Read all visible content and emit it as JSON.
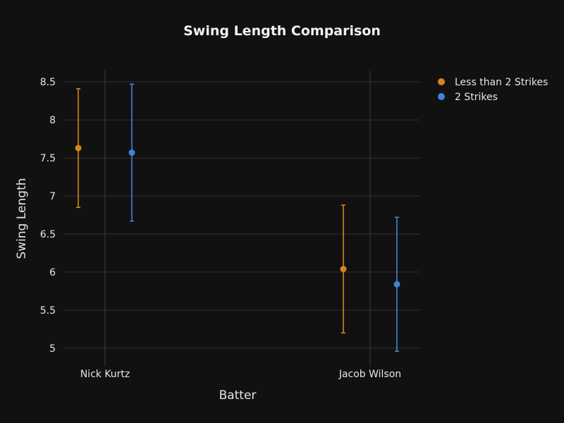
{
  "chart_data": {
    "type": "scatter",
    "title": "Swing Length Comparison",
    "xlabel": "Batter",
    "ylabel": "Swing Length",
    "categories": [
      "Nick Kurtz",
      "Jacob Wilson"
    ],
    "ylim": [
      4.85,
      8.65
    ],
    "yticks": [
      5,
      5.5,
      6,
      6.5,
      7,
      7.5,
      8,
      8.5
    ],
    "ytick_labels": [
      "5",
      "5.5",
      "6",
      "6.5",
      "7",
      "7.5",
      "8",
      "8.5"
    ],
    "grid": true,
    "legend_position": "top-right",
    "series": [
      {
        "name": "Less than 2 Strikes",
        "color": "#d4861a",
        "values": [
          7.63,
          6.04
        ],
        "error_low": [
          6.85,
          5.2
        ],
        "error_high": [
          8.41,
          6.88
        ]
      },
      {
        "name": "2 Strikes",
        "color": "#3d85d8",
        "values": [
          7.57,
          5.84
        ],
        "error_low": [
          6.67,
          4.96
        ],
        "error_high": [
          8.47,
          6.72
        ]
      }
    ]
  },
  "colors": {
    "background": "#111111",
    "grid": "#2f3133",
    "category_line": "#2e3846"
  }
}
